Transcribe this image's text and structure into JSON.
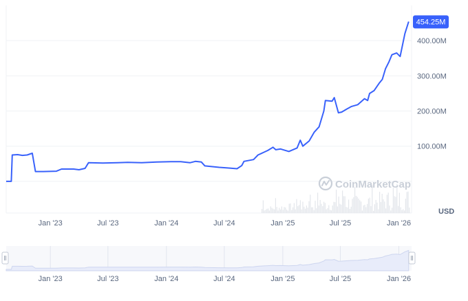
{
  "colors": {
    "line": "#3861fb",
    "badge": "#3861fb",
    "grid": "#eff2f5",
    "volume": "#e3e6eb",
    "navigator_fill": "#e8ecfa",
    "navigator_line": "#cdd5ef"
  },
  "watermark": "CoinMarketCap",
  "currency": "USD",
  "current_value_label": "454.25M",
  "chart_data": {
    "type": "line",
    "title": "",
    "xlabel": "",
    "ylabel": "",
    "grid": true,
    "x_ticks": [
      "Jan '23",
      "Jul '23",
      "Jan '24",
      "Jul '24",
      "Jan '25",
      "Jul '25",
      "Jan '26"
    ],
    "y_ticks": [
      "100.00M",
      "200.00M",
      "300.00M",
      "400.00M"
    ],
    "ylim": [
      -90,
      500
    ],
    "xlim": [
      "2022-08-15",
      "2026-02-10"
    ],
    "series": [
      {
        "values": [
          [
            "2022-08-15",
            0
          ],
          [
            "2022-08-31",
            0
          ],
          [
            "2022-09-03",
            75
          ],
          [
            "2022-09-20",
            76
          ],
          [
            "2022-10-05",
            74
          ],
          [
            "2022-10-20",
            75
          ],
          [
            "2022-11-05",
            80
          ],
          [
            "2022-11-15",
            28
          ],
          [
            "2022-12-10",
            28
          ],
          [
            "2023-01-20",
            29
          ],
          [
            "2023-02-05",
            35
          ],
          [
            "2023-03-15",
            35
          ],
          [
            "2023-04-01",
            33
          ],
          [
            "2023-04-20",
            37
          ],
          [
            "2023-05-01",
            53
          ],
          [
            "2023-06-15",
            52
          ],
          [
            "2023-08-01",
            53
          ],
          [
            "2023-09-01",
            54
          ],
          [
            "2023-10-15",
            53
          ],
          [
            "2023-12-01",
            55
          ],
          [
            "2024-01-15",
            56
          ],
          [
            "2024-02-15",
            56
          ],
          [
            "2024-03-15",
            53
          ],
          [
            "2024-04-01",
            57
          ],
          [
            "2024-04-20",
            55
          ],
          [
            "2024-05-01",
            44
          ],
          [
            "2024-06-15",
            40
          ],
          [
            "2024-07-15",
            38
          ],
          [
            "2024-08-10",
            36
          ],
          [
            "2024-08-25",
            45
          ],
          [
            "2024-09-01",
            57
          ],
          [
            "2024-10-01",
            62
          ],
          [
            "2024-10-15",
            75
          ],
          [
            "2024-11-15",
            88
          ],
          [
            "2024-12-01",
            97
          ],
          [
            "2024-12-10",
            90
          ],
          [
            "2024-12-25",
            92
          ],
          [
            "2025-01-20",
            85
          ],
          [
            "2025-02-15",
            95
          ],
          [
            "2025-02-25",
            117
          ],
          [
            "2025-03-05",
            100
          ],
          [
            "2025-03-25",
            115
          ],
          [
            "2025-04-10",
            140
          ],
          [
            "2025-04-25",
            155
          ],
          [
            "2025-05-10",
            200
          ],
          [
            "2025-05-15",
            230
          ],
          [
            "2025-06-05",
            228
          ],
          [
            "2025-06-12",
            238
          ],
          [
            "2025-06-25",
            195
          ],
          [
            "2025-07-05",
            197
          ],
          [
            "2025-07-20",
            205
          ],
          [
            "2025-08-05",
            213
          ],
          [
            "2025-08-25",
            218
          ],
          [
            "2025-09-15",
            235
          ],
          [
            "2025-09-25",
            230
          ],
          [
            "2025-10-01",
            250
          ],
          [
            "2025-10-15",
            258
          ],
          [
            "2025-11-01",
            280
          ],
          [
            "2025-11-10",
            290
          ],
          [
            "2025-11-20",
            320
          ],
          [
            "2025-12-01",
            340
          ],
          [
            "2025-12-10",
            360
          ],
          [
            "2025-12-25",
            365
          ],
          [
            "2026-01-05",
            355
          ],
          [
            "2026-01-20",
            420
          ],
          [
            "2026-02-01",
            454.25
          ]
        ]
      }
    ]
  }
}
